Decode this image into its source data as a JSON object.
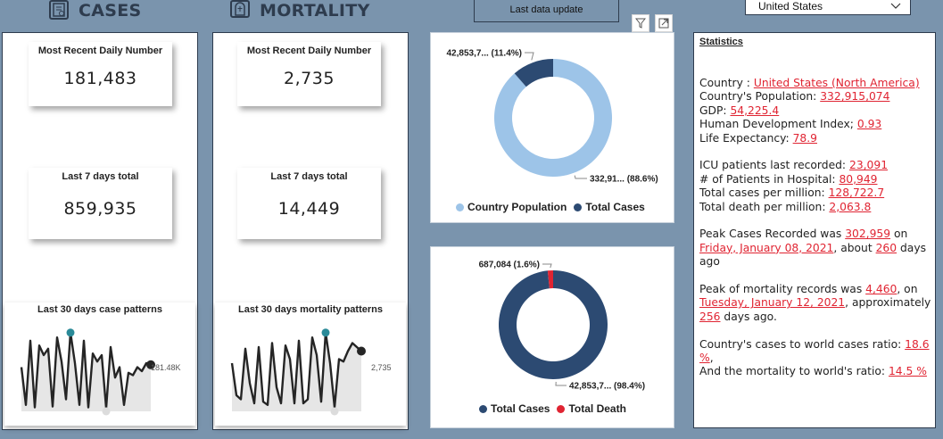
{
  "header": {
    "cases_title": "CASES",
    "mortality_title": "MORTALITY",
    "last_update_label": "Last data update",
    "country_select": "United States"
  },
  "cases": {
    "recent_label": "Most Recent Daily Number",
    "recent_value": "181,483",
    "week_label": "Last 7 days total",
    "week_value": "859,935",
    "spark_title": "Last 30 days case patterns",
    "spark_last_label": "181.48K",
    "spark_values": [
      55,
      8,
      88,
      5,
      82,
      70,
      78,
      6,
      92,
      62,
      15,
      98,
      60,
      8,
      88,
      5,
      72,
      62,
      70,
      4,
      80,
      42,
      55,
      8,
      48,
      45,
      55,
      50,
      60,
      58
    ]
  },
  "mortality": {
    "recent_label": "Most Recent Daily Number",
    "recent_value": "2,735",
    "week_label": "Last 7 days total",
    "week_value": "14,449",
    "spark_title": "Last 30 days mortality patterns",
    "spark_last_label": "2,735",
    "spark_values": [
      60,
      20,
      15,
      78,
      35,
      10,
      80,
      12,
      8,
      85,
      30,
      10,
      82,
      65,
      10,
      88,
      10,
      15,
      92,
      70,
      12,
      98,
      60,
      5,
      65,
      62,
      75,
      85,
      80,
      75
    ]
  },
  "donut1": {
    "slices": [
      {
        "name": "Country Population",
        "value": 88.6,
        "color": "#9dc4e8",
        "label": "332,91... (88.6%)"
      },
      {
        "name": "Total Cases",
        "value": 11.4,
        "color": "#2c4a72",
        "label": "42,853,7... (11.4%)"
      }
    ]
  },
  "donut2": {
    "slices": [
      {
        "name": "Total Cases",
        "value": 98.4,
        "color": "#2c4a72",
        "label": "42,853,7... (98.4%)"
      },
      {
        "name": "Total Death",
        "value": 1.6,
        "color": "#e02432",
        "label": "687,084 (1.6%)"
      }
    ]
  },
  "stats": {
    "title": "Statistics",
    "country_label": "Country : ",
    "country_val": "United States (North America)",
    "pop_label": "Country's Population: ",
    "pop_val": "332,915,074",
    "gdp_label": "GDP:  ",
    "gdp_val": "54,225.4",
    "hdi_label": "Human Development Index; ",
    "hdi_val": "0.93",
    "life_label": "Life Expectancy: ",
    "life_val": "78.9",
    "icu_label": "ICU patients last recorded: ",
    "icu_val": "23,091",
    "hosp_label": "# of Patients in Hospital: ",
    "hosp_val": "80,949",
    "cpm_label": "Total cases per million: ",
    "cpm_val": "128,722.7",
    "dpm_label": "Total death per million: ",
    "dpm_val": "2,063.8",
    "peak_cases_a": "Peak Cases Recorded was ",
    "peak_cases_val": "302,959",
    "peak_cases_b": " on ",
    "peak_cases_date": "Friday, January 08, 2021",
    "peak_cases_c": ", about ",
    "peak_cases_days": "260",
    "peak_cases_d": " days ago",
    "peak_mort_a": "Peak of mortality records was ",
    "peak_mort_val": "4,460",
    "peak_mort_b": ", on ",
    "peak_mort_date": "Tuesday, January 12, 2021",
    "peak_mort_c": ", approximately ",
    "peak_mort_days": "256",
    "peak_mort_d": " days ago.",
    "ratio_cases_label": "Country's cases to world cases ratio: ",
    "ratio_cases_val": "18.6 %",
    "ratio_cases_end": ",",
    "ratio_mort_label": "And the mortality to world's ratio: ",
    "ratio_mort_val": "14.5 %"
  }
}
